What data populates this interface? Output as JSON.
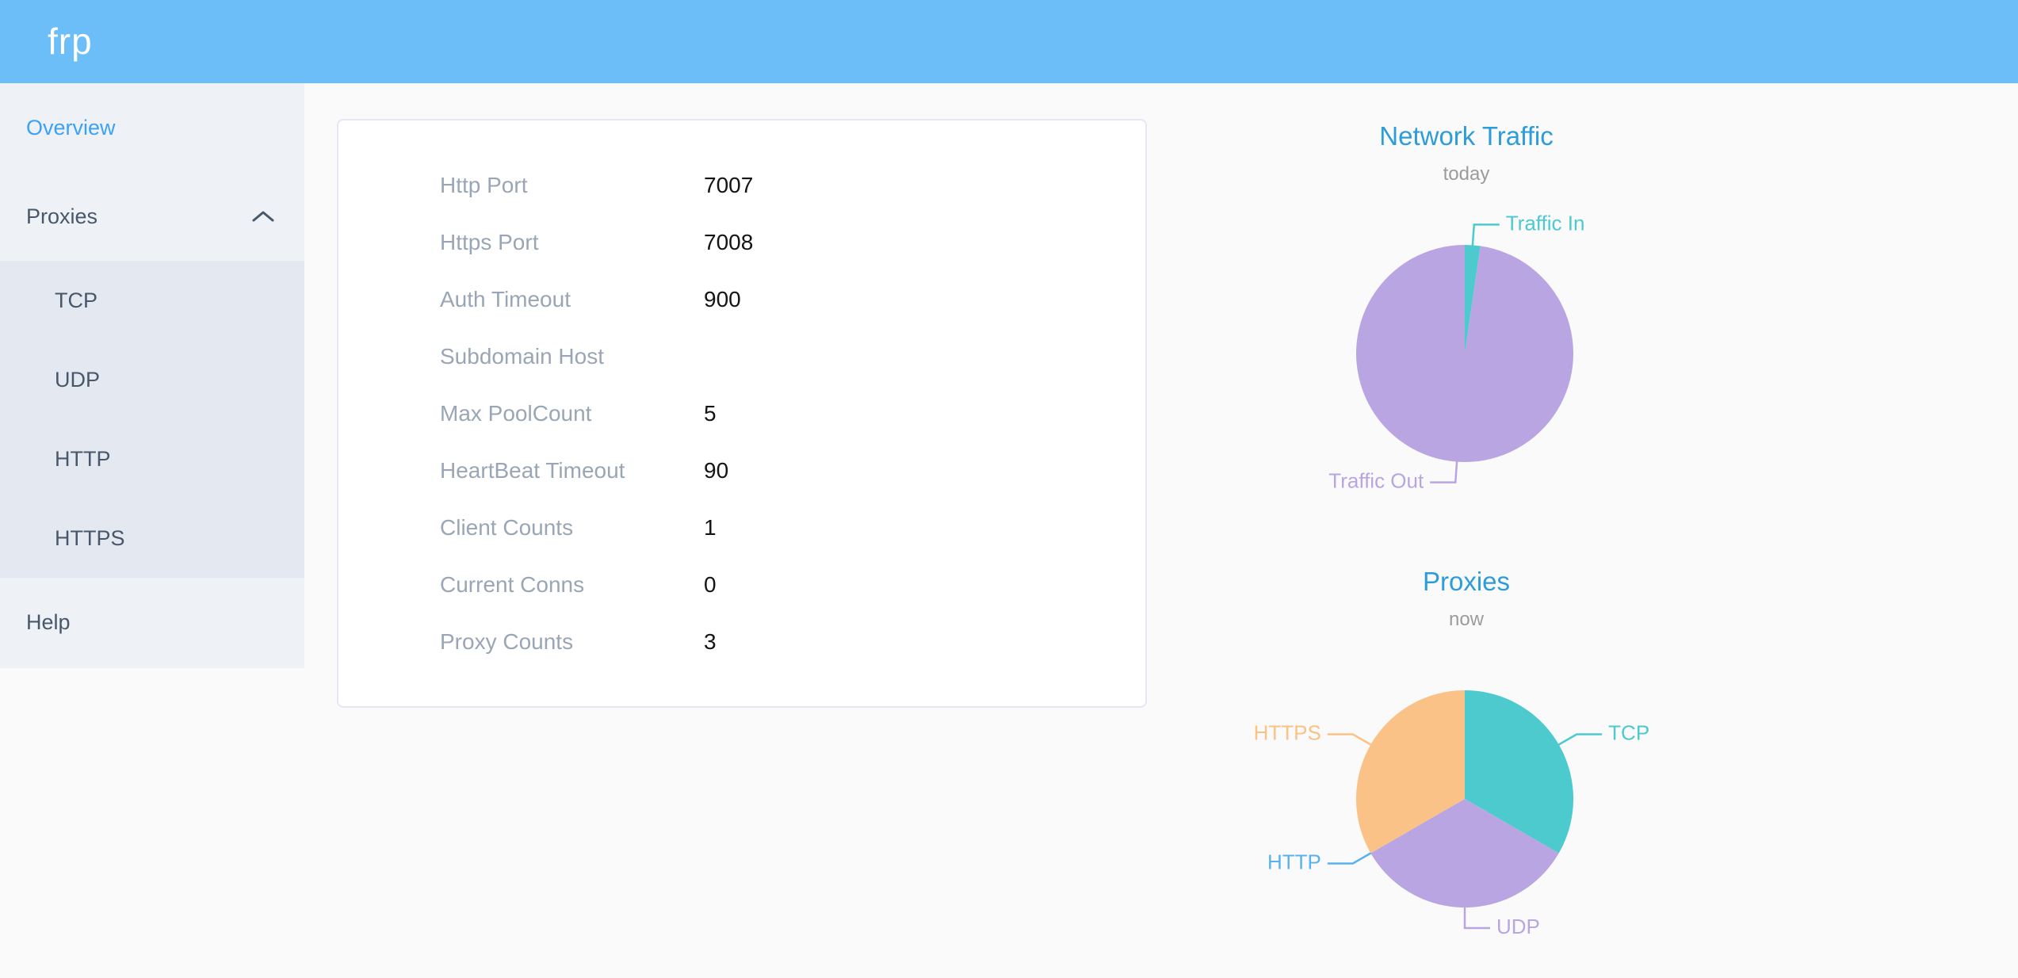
{
  "header": {
    "logo": "frp"
  },
  "sidebar": {
    "items": [
      {
        "label": "Overview",
        "type": "item",
        "active": true
      },
      {
        "label": "Proxies",
        "type": "group",
        "expanded": true,
        "icon": "chevron-up-icon"
      },
      {
        "label": "TCP",
        "type": "subitem"
      },
      {
        "label": "UDP",
        "type": "subitem"
      },
      {
        "label": "HTTP",
        "type": "subitem"
      },
      {
        "label": "HTTPS",
        "type": "subitem"
      },
      {
        "label": "Help",
        "type": "item"
      }
    ]
  },
  "server_info": {
    "rows": [
      {
        "label": "Http Port",
        "value": "7007"
      },
      {
        "label": "Https Port",
        "value": "7008"
      },
      {
        "label": "Auth Timeout",
        "value": "900"
      },
      {
        "label": "Subdomain Host",
        "value": ""
      },
      {
        "label": "Max PoolCount",
        "value": "5"
      },
      {
        "label": "HeartBeat Timeout",
        "value": "90"
      },
      {
        "label": "Client Counts",
        "value": "1"
      },
      {
        "label": "Current Conns",
        "value": "0"
      },
      {
        "label": "Proxy Counts",
        "value": "3"
      }
    ]
  },
  "chart_data": [
    {
      "type": "pie",
      "title": "Network Traffic",
      "subtitle": "today",
      "labels_position": "outside",
      "start_angle_deg": 0,
      "clockwise": true,
      "slices": [
        {
          "label": "Traffic In",
          "value": 2.3,
          "color": "#4ccace"
        },
        {
          "label": "Traffic Out",
          "value": 97.7,
          "color": "#b9a5e1"
        }
      ]
    },
    {
      "type": "pie",
      "title": "Proxies",
      "subtitle": "now",
      "labels_position": "outside",
      "start_angle_deg": 0,
      "clockwise": true,
      "slices": [
        {
          "label": "TCP",
          "value": 1,
          "color": "#4ccace"
        },
        {
          "label": "UDP",
          "value": 1,
          "color": "#b9a5e1"
        },
        {
          "label": "HTTP",
          "value": 0,
          "color": "#5ab1ef"
        },
        {
          "label": "HTTPS",
          "value": 1,
          "color": "#fac286"
        }
      ]
    }
  ],
  "colors": {
    "header_bg": "#6bbef8",
    "sidebar_bg": "#eef1f6",
    "submenu_bg": "#e4e8f1",
    "sidebar_text": "#48576a",
    "sidebar_active": "#3da2f4",
    "chart_title": "#2d9cdb",
    "field_label": "#9aa5b5"
  }
}
